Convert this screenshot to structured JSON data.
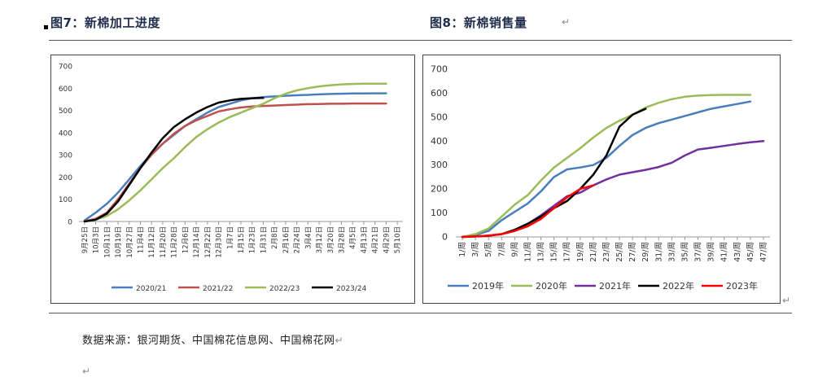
{
  "header": {
    "left_title": "图7：新棉加工进度",
    "right_title": "图8：新棉销售量",
    "right_return_mark": "↵"
  },
  "footer": {
    "source": "数据来源：银河期货、中国棉花信息网、中国棉花网",
    "source_return_mark": "↵",
    "trailing_return_mark": "↵",
    "chart_return_mark": "↵"
  },
  "chart_data": [
    {
      "type": "line",
      "title": "",
      "xlabel": "",
      "ylabel": "",
      "ylim": [
        0,
        700
      ],
      "yticks": [
        0,
        100,
        200,
        300,
        400,
        500,
        600,
        700
      ],
      "grid": false,
      "legend": "bottom",
      "categories": [
        "9月25日",
        "10月3日",
        "10月11日",
        "10月19日",
        "10月27日",
        "11月4日",
        "11月12日",
        "11月20日",
        "11月28日",
        "12月6日",
        "12月14日",
        "12月22日",
        "12月30日",
        "1月7日",
        "1月15日",
        "1月23日",
        "1月31日",
        "2月8日",
        "2月16日",
        "2月24日",
        "3月4日",
        "3月12日",
        "3月20日",
        "3月28日",
        "4月5日",
        "4月13日",
        "4月21日",
        "4月29日",
        "5月10日"
      ],
      "series": [
        {
          "name": "2020/21",
          "color": "#4a7ebb",
          "values": [
            5,
            40,
            80,
            130,
            190,
            250,
            305,
            350,
            390,
            430,
            460,
            490,
            515,
            530,
            545,
            555,
            560,
            563,
            566,
            568,
            570,
            572,
            574,
            575,
            576,
            576,
            577,
            577,
            null
          ]
        },
        {
          "name": "2021/22",
          "color": "#c0504d",
          "values": [
            2,
            12,
            40,
            100,
            170,
            240,
            300,
            350,
            395,
            430,
            455,
            475,
            495,
            505,
            513,
            518,
            520,
            522,
            524,
            526,
            528,
            529,
            530,
            530,
            531,
            531,
            531,
            531,
            null
          ]
        },
        {
          "name": "2022/23",
          "color": "#9bbb59",
          "values": [
            1,
            8,
            25,
            55,
            95,
            140,
            190,
            240,
            285,
            335,
            380,
            415,
            445,
            470,
            490,
            510,
            530,
            555,
            575,
            590,
            600,
            608,
            613,
            617,
            619,
            620,
            620,
            620,
            null
          ]
        },
        {
          "name": "2023/24",
          "color": "#000000",
          "values": [
            0,
            8,
            35,
            90,
            165,
            240,
            310,
            375,
            425,
            460,
            490,
            515,
            535,
            545,
            552,
            555,
            556,
            null,
            null,
            null,
            null,
            null,
            null,
            null,
            null,
            null,
            null,
            null,
            null
          ]
        }
      ]
    },
    {
      "type": "line",
      "title": "",
      "xlabel": "",
      "ylabel": "",
      "ylim": [
        0,
        700
      ],
      "yticks": [
        0,
        100,
        200,
        300,
        400,
        500,
        600,
        700
      ],
      "grid": false,
      "legend": "bottom",
      "categories": [
        "1/周",
        "3/周",
        "5/周",
        "7/周",
        "9/周",
        "11/周",
        "13/周",
        "15/周",
        "17/周",
        "19/周",
        "21/周",
        "23/周",
        "25/周",
        "27/周",
        "29/周",
        "31/周",
        "33/周",
        "35/周",
        "37/周",
        "39/周",
        "41/周",
        "43/周",
        "45/周",
        "47/周"
      ],
      "series": [
        {
          "name": "2019年",
          "color": "#4a7ebb",
          "values": [
            0,
            8,
            25,
            70,
            105,
            140,
            190,
            250,
            282,
            290,
            300,
            330,
            380,
            425,
            455,
            475,
            490,
            505,
            520,
            535,
            545,
            555,
            565,
            null
          ]
        },
        {
          "name": "2020年",
          "color": "#9bbb59",
          "values": [
            0,
            12,
            35,
            85,
            135,
            175,
            235,
            290,
            330,
            370,
            415,
            455,
            485,
            510,
            540,
            560,
            575,
            585,
            590,
            592,
            593,
            593,
            593,
            null
          ]
        },
        {
          "name": "2021年",
          "color": "#7030a0",
          "values": [
            null,
            null,
            null,
            null,
            30,
            55,
            90,
            130,
            170,
            185,
            215,
            240,
            260,
            270,
            280,
            292,
            310,
            340,
            365,
            372,
            380,
            388,
            395,
            400
          ]
        },
        {
          "name": "2022年",
          "color": "#000000",
          "values": [
            0,
            2,
            5,
            12,
            30,
            55,
            85,
            120,
            150,
            200,
            260,
            340,
            460,
            510,
            535,
            null,
            null,
            null,
            null,
            null,
            null,
            null,
            null,
            null
          ]
        },
        {
          "name": "2023年",
          "color": "#ff0000",
          "values": [
            0,
            2,
            6,
            12,
            25,
            45,
            75,
            120,
            165,
            200,
            215,
            null,
            null,
            null,
            null,
            null,
            null,
            null,
            null,
            null,
            null,
            null,
            null,
            null
          ]
        }
      ]
    }
  ]
}
